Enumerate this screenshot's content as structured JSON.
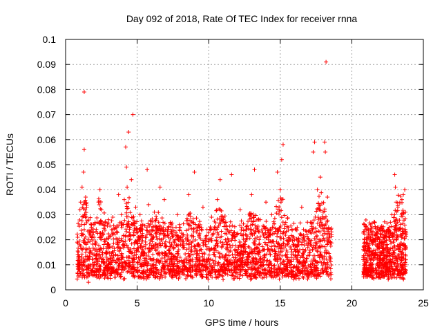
{
  "chart_data": {
    "type": "scatter",
    "title": "Day 092 of 2018, Rate Of TEC Index for receiver rnna",
    "xlabel": "GPS time / hours",
    "ylabel": "ROTI / TECUs",
    "xlim": [
      0,
      25
    ],
    "ylim": [
      0,
      0.1
    ],
    "x_ticks": [
      "0",
      "5",
      "10",
      "15",
      "20",
      "25"
    ],
    "y_ticks": [
      "0",
      "0.01",
      "0.02",
      "0.03",
      "0.04",
      "0.05",
      "0.06",
      "0.07",
      "0.08",
      "0.09",
      "0.1"
    ],
    "grid": true,
    "marker": "+",
    "color": "#ff0000",
    "series": [
      {
        "name": "ROTI",
        "points": [
          [
            0.9,
            0.013
          ],
          [
            1.0,
            0.018
          ],
          [
            1.0,
            0.032
          ],
          [
            1.05,
            0.035
          ],
          [
            1.1,
            0.011
          ],
          [
            1.1,
            0.026
          ],
          [
            1.15,
            0.041
          ],
          [
            1.2,
            0.008
          ],
          [
            1.2,
            0.022
          ],
          [
            1.25,
            0.047
          ],
          [
            1.3,
            0.056
          ],
          [
            1.3,
            0.079
          ],
          [
            1.35,
            0.03
          ],
          [
            1.4,
            0.015
          ],
          [
            1.45,
            0.005
          ],
          [
            1.5,
            0.012
          ],
          [
            1.55,
            0.019
          ],
          [
            1.6,
            0.003
          ],
          [
            1.7,
            0.01
          ],
          [
            1.8,
            0.025
          ],
          [
            1.9,
            0.022
          ],
          [
            2.0,
            0.014
          ],
          [
            2.1,
            0.018
          ],
          [
            2.2,
            0.027
          ],
          [
            2.3,
            0.035
          ],
          [
            2.4,
            0.04
          ],
          [
            2.5,
            0.032
          ],
          [
            2.6,
            0.012
          ],
          [
            2.7,
            0.02
          ],
          [
            2.8,
            0.015
          ],
          [
            2.9,
            0.009
          ],
          [
            3.0,
            0.028
          ],
          [
            3.1,
            0.017
          ],
          [
            3.2,
            0.011
          ],
          [
            3.3,
            0.029
          ],
          [
            3.4,
            0.007
          ],
          [
            3.5,
            0.014
          ],
          [
            3.6,
            0.023
          ],
          [
            3.7,
            0.038
          ],
          [
            3.8,
            0.012
          ],
          [
            3.9,
            0.03
          ],
          [
            4.0,
            0.018
          ],
          [
            4.1,
            0.036
          ],
          [
            4.2,
            0.057
          ],
          [
            4.25,
            0.049
          ],
          [
            4.3,
            0.041
          ],
          [
            4.4,
            0.063
          ],
          [
            4.5,
            0.025
          ],
          [
            4.6,
            0.044
          ],
          [
            4.7,
            0.07
          ],
          [
            4.8,
            0.012
          ],
          [
            4.9,
            0.033
          ],
          [
            5.0,
            0.009
          ],
          [
            5.1,
            0.021
          ],
          [
            5.2,
            0.03
          ],
          [
            5.3,
            0.014
          ],
          [
            5.4,
            0.026
          ],
          [
            5.5,
            0.01
          ],
          [
            5.6,
            0.018
          ],
          [
            5.7,
            0.048
          ],
          [
            5.8,
            0.034
          ],
          [
            5.9,
            0.012
          ],
          [
            6.0,
            0.022
          ],
          [
            6.1,
            0.007
          ],
          [
            6.2,
            0.031
          ],
          [
            6.3,
            0.016
          ],
          [
            6.4,
            0.012
          ],
          [
            6.5,
            0.027
          ],
          [
            6.6,
            0.041
          ],
          [
            6.7,
            0.02
          ],
          [
            6.8,
            0.009
          ],
          [
            6.9,
            0.036
          ],
          [
            7.0,
            0.014
          ],
          [
            7.2,
            0.025
          ],
          [
            7.4,
            0.011
          ],
          [
            7.6,
            0.019
          ],
          [
            7.8,
            0.03
          ],
          [
            8.0,
            0.013
          ],
          [
            8.2,
            0.022
          ],
          [
            8.4,
            0.008
          ],
          [
            8.6,
            0.038
          ],
          [
            8.8,
            0.016
          ],
          [
            9.0,
            0.047
          ],
          [
            9.2,
            0.012
          ],
          [
            9.4,
            0.026
          ],
          [
            9.6,
            0.033
          ],
          [
            9.8,
            0.01
          ],
          [
            10.0,
            0.02
          ],
          [
            10.2,
            0.029
          ],
          [
            10.4,
            0.014
          ],
          [
            10.6,
            0.036
          ],
          [
            10.8,
            0.044
          ],
          [
            11.0,
            0.018
          ],
          [
            11.2,
            0.027
          ],
          [
            11.4,
            0.011
          ],
          [
            11.6,
            0.046
          ],
          [
            11.8,
            0.023
          ],
          [
            12.0,
            0.015
          ],
          [
            12.2,
            0.032
          ],
          [
            12.4,
            0.009
          ],
          [
            12.6,
            0.024
          ],
          [
            12.8,
            0.013
          ],
          [
            13.0,
            0.038
          ],
          [
            13.2,
            0.048
          ],
          [
            13.4,
            0.017
          ],
          [
            13.6,
            0.028
          ],
          [
            13.8,
            0.012
          ],
          [
            14.0,
            0.035
          ],
          [
            14.2,
            0.021
          ],
          [
            14.4,
            0.03
          ],
          [
            14.6,
            0.016
          ],
          [
            14.8,
            0.047
          ],
          [
            15.0,
            0.04
          ],
          [
            15.1,
            0.052
          ],
          [
            15.2,
            0.058
          ],
          [
            15.3,
            0.026
          ],
          [
            15.5,
            0.012
          ],
          [
            15.7,
            0.02
          ],
          [
            15.9,
            0.009
          ],
          [
            16.1,
            0.024
          ],
          [
            16.3,
            0.015
          ],
          [
            16.5,
            0.033
          ],
          [
            16.7,
            0.011
          ],
          [
            16.9,
            0.027
          ],
          [
            17.1,
            0.018
          ],
          [
            17.3,
            0.055
          ],
          [
            17.4,
            0.059
          ],
          [
            17.6,
            0.04
          ],
          [
            17.8,
            0.045
          ],
          [
            17.9,
            0.026
          ],
          [
            18.0,
            0.031
          ],
          [
            18.1,
            0.059
          ],
          [
            18.15,
            0.055
          ],
          [
            18.2,
            0.091
          ],
          [
            18.3,
            0.037
          ],
          [
            18.4,
            0.019
          ],
          [
            18.5,
            0.013
          ],
          [
            20.8,
            0.012
          ],
          [
            20.9,
            0.019
          ],
          [
            21.0,
            0.008
          ],
          [
            21.1,
            0.016
          ],
          [
            21.2,
            0.022
          ],
          [
            21.3,
            0.01
          ],
          [
            21.4,
            0.014
          ],
          [
            21.5,
            0.02
          ],
          [
            21.6,
            0.027
          ],
          [
            21.7,
            0.005
          ],
          [
            21.8,
            0.018
          ],
          [
            21.9,
            0.011
          ],
          [
            22.0,
            0.024
          ],
          [
            22.1,
            0.015
          ],
          [
            22.2,
            0.009
          ],
          [
            22.3,
            0.013
          ],
          [
            22.4,
            0.021
          ],
          [
            22.5,
            0.017
          ],
          [
            22.6,
            0.025
          ],
          [
            22.7,
            0.012
          ],
          [
            22.8,
            0.03
          ],
          [
            22.9,
            0.019
          ],
          [
            23.0,
            0.046
          ],
          [
            23.05,
            0.041
          ],
          [
            23.1,
            0.035
          ],
          [
            23.2,
            0.027
          ],
          [
            23.3,
            0.014
          ],
          [
            23.4,
            0.022
          ],
          [
            23.5,
            0.036
          ],
          [
            23.6,
            0.038
          ],
          [
            23.7,
            0.04
          ],
          [
            23.75,
            0.031
          ]
        ]
      }
    ],
    "clusters": [
      {
        "x_start": 0.8,
        "x_end": 18.6,
        "count": 2600
      },
      {
        "x_start": 20.8,
        "x_end": 23.8,
        "count": 700
      }
    ]
  }
}
